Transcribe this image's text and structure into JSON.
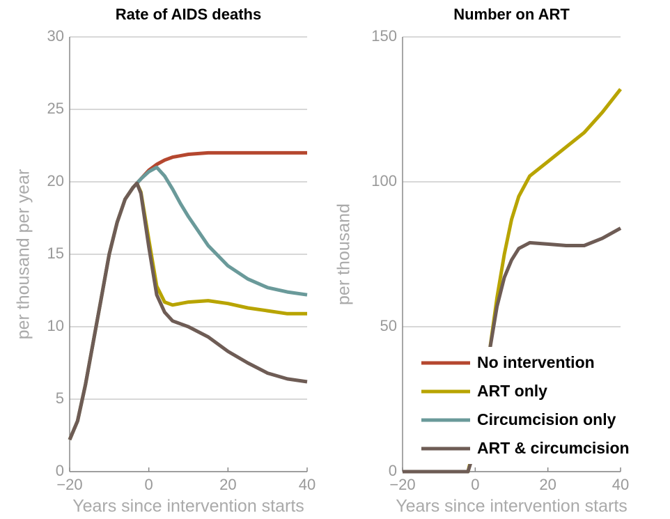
{
  "chart_data": [
    {
      "type": "line",
      "title": "Rate of AIDS deaths",
      "xlabel": "Years since intervention starts",
      "ylabel": "per thousand per year",
      "x": [
        -20,
        -18,
        -16,
        -14,
        -12,
        -10,
        -8,
        -6,
        -4,
        -3,
        -2,
        0,
        2,
        4,
        6,
        8,
        10,
        15,
        20,
        25,
        30,
        35,
        40
      ],
      "series": [
        {
          "name": "No intervention",
          "color": "#b5472f",
          "values": [
            2.2,
            3.5,
            6,
            9,
            12,
            15,
            17.2,
            18.8,
            19.6,
            19.9,
            20.2,
            20.8,
            21.2,
            21.5,
            21.7,
            21.8,
            21.9,
            22,
            22,
            22,
            22,
            22,
            22
          ]
        },
        {
          "name": "ART only",
          "color": "#b8a400",
          "values": [
            2.2,
            3.5,
            6,
            9,
            12,
            15,
            17.2,
            18.8,
            19.6,
            19.9,
            19.3,
            16,
            12.8,
            11.7,
            11.5,
            11.6,
            11.7,
            11.8,
            11.6,
            11.3,
            11.1,
            10.9,
            10.9
          ]
        },
        {
          "name": "Circumcision only",
          "color": "#6a9a9a",
          "values": [
            2.2,
            3.5,
            6,
            9,
            12,
            15,
            17.2,
            18.8,
            19.6,
            19.9,
            20.2,
            20.7,
            21,
            20.4,
            19.5,
            18.5,
            17.6,
            15.6,
            14.2,
            13.3,
            12.7,
            12.4,
            12.2
          ]
        },
        {
          "name": "ART & circumcision",
          "color": "#6e5c55",
          "values": [
            2.2,
            3.5,
            6,
            9,
            12,
            15,
            17.2,
            18.8,
            19.6,
            19.9,
            19.2,
            15.5,
            12.2,
            11,
            10.4,
            10.2,
            10,
            9.3,
            8.3,
            7.5,
            6.8,
            6.4,
            6.2
          ]
        }
      ],
      "xlim": [
        -20,
        40
      ],
      "xticks": [
        {
          "value": -20,
          "label": "−20"
        },
        0,
        20,
        40
      ],
      "ylim": [
        0,
        30
      ],
      "yticks": [
        0,
        5,
        10,
        15,
        20,
        25,
        30
      ],
      "grid": true,
      "legend": "lower right"
    },
    {
      "type": "line",
      "title": "Number on ART",
      "xlabel": "Years since intervention starts",
      "ylabel": "per thousand",
      "x": [
        -20,
        -10,
        -2,
        0,
        4,
        6,
        8,
        10,
        12,
        15,
        20,
        25,
        30,
        35,
        40
      ],
      "series": [
        {
          "color": "#b8a400",
          "values": [
            0,
            0,
            0,
            10,
            42,
            60,
            75,
            87,
            95,
            102,
            107,
            112,
            117,
            124,
            132
          ]
        },
        {
          "color": "#6e5c55",
          "values": [
            0,
            0,
            0,
            8,
            42,
            57,
            67,
            73,
            77,
            79,
            78.5,
            78,
            78,
            80.5,
            84
          ]
        }
      ],
      "xlim": [
        -20,
        40
      ],
      "xticks": [
        {
          "value": -20,
          "label": "−20"
        },
        0,
        20,
        40
      ],
      "ylim": [
        0,
        150
      ],
      "yticks": [
        0,
        50,
        100,
        150
      ],
      "grid": true
    }
  ]
}
